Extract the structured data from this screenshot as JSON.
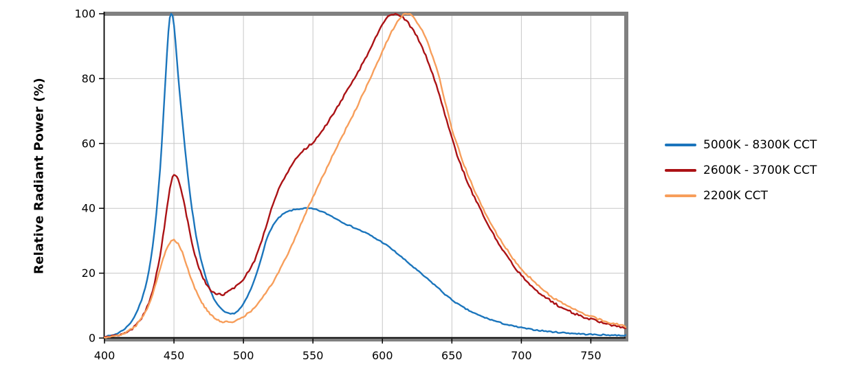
{
  "chart_data": {
    "type": "line",
    "title": "",
    "xlabel": "",
    "ylabel": "Relative Radiant Power (%)",
    "xlim": [
      400,
      775
    ],
    "ylim": [
      0,
      100
    ],
    "x_ticks": [
      400,
      450,
      500,
      550,
      600,
      650,
      700,
      750
    ],
    "y_ticks": [
      0,
      20,
      40,
      60,
      80,
      100
    ],
    "grid": true,
    "legend_position": "right",
    "colors": {
      "grid": "#C7C7C7",
      "plot_border": "#808080",
      "axis": "#000000",
      "tick_label": "#000000",
      "background": "#FFFFFF"
    },
    "series": [
      {
        "name": "5000K - 8300K CCT",
        "color": "#1B75BC",
        "noise": 0.18,
        "points": [
          [
            400,
            0.4
          ],
          [
            404,
            0.7
          ],
          [
            408,
            1.2
          ],
          [
            412,
            2.1
          ],
          [
            416,
            3.4
          ],
          [
            420,
            5.5
          ],
          [
            424,
            8.8
          ],
          [
            428,
            13.5
          ],
          [
            432,
            21
          ],
          [
            436,
            33
          ],
          [
            440,
            52
          ],
          [
            443,
            73
          ],
          [
            445,
            88
          ],
          [
            447,
            99
          ],
          [
            449,
            99.5
          ],
          [
            451,
            92
          ],
          [
            453,
            81
          ],
          [
            456,
            67
          ],
          [
            459,
            54
          ],
          [
            462,
            43
          ],
          [
            465,
            34
          ],
          [
            468,
            27
          ],
          [
            472,
            20
          ],
          [
            476,
            14.8
          ],
          [
            480,
            11.2
          ],
          [
            484,
            8.9
          ],
          [
            488,
            7.7
          ],
          [
            492,
            7.5
          ],
          [
            496,
            8.4
          ],
          [
            500,
            10.5
          ],
          [
            504,
            13.8
          ],
          [
            508,
            18
          ],
          [
            512,
            23.5
          ],
          [
            516,
            29.5
          ],
          [
            520,
            33.8
          ],
          [
            524,
            36.3
          ],
          [
            528,
            38
          ],
          [
            532,
            39
          ],
          [
            536,
            39.5
          ],
          [
            540,
            39.8
          ],
          [
            545,
            40
          ],
          [
            550,
            39.8
          ],
          [
            555,
            39.2
          ],
          [
            560,
            38.3
          ],
          [
            565,
            37.2
          ],
          [
            570,
            36
          ],
          [
            575,
            34.9
          ],
          [
            580,
            34
          ],
          [
            585,
            33
          ],
          [
            590,
            32
          ],
          [
            595,
            30.7
          ],
          [
            600,
            29.5
          ],
          [
            605,
            28
          ],
          [
            610,
            26.3
          ],
          [
            615,
            24.5
          ],
          [
            620,
            22.7
          ],
          [
            625,
            20.9
          ],
          [
            630,
            19.1
          ],
          [
            635,
            17.3
          ],
          [
            640,
            15.5
          ],
          [
            645,
            13.5
          ],
          [
            650,
            11.8
          ],
          [
            655,
            10.3
          ],
          [
            660,
            9
          ],
          [
            665,
            7.9
          ],
          [
            670,
            6.9
          ],
          [
            675,
            6.1
          ],
          [
            680,
            5.4
          ],
          [
            685,
            4.7
          ],
          [
            690,
            4.1
          ],
          [
            695,
            3.6
          ],
          [
            700,
            3.2
          ],
          [
            705,
            2.8
          ],
          [
            710,
            2.5
          ],
          [
            715,
            2.25
          ],
          [
            720,
            2
          ],
          [
            725,
            1.8
          ],
          [
            730,
            1.65
          ],
          [
            735,
            1.5
          ],
          [
            740,
            1.35
          ],
          [
            745,
            1.2
          ],
          [
            750,
            1.1
          ],
          [
            755,
            1
          ],
          [
            760,
            0.95
          ],
          [
            765,
            0.9
          ],
          [
            770,
            0.85
          ],
          [
            775,
            0.8
          ]
        ]
      },
      {
        "name": "2600K - 3700K CCT",
        "color": "#AB1215",
        "noise": 0.35,
        "points": [
          [
            400,
            0.3
          ],
          [
            404,
            0.5
          ],
          [
            408,
            0.8
          ],
          [
            412,
            1.2
          ],
          [
            416,
            1.9
          ],
          [
            420,
            2.9
          ],
          [
            424,
            4.6
          ],
          [
            428,
            7.2
          ],
          [
            432,
            11
          ],
          [
            436,
            17
          ],
          [
            440,
            25.5
          ],
          [
            443,
            34
          ],
          [
            446,
            43
          ],
          [
            448,
            48
          ],
          [
            450,
            50.3
          ],
          [
            452,
            49.8
          ],
          [
            455,
            46
          ],
          [
            458,
            40
          ],
          [
            461,
            33.5
          ],
          [
            464,
            27.5
          ],
          [
            467,
            23
          ],
          [
            470,
            19.5
          ],
          [
            473,
            16.8
          ],
          [
            476,
            14.8
          ],
          [
            479,
            13.7
          ],
          [
            482,
            13.4
          ],
          [
            485,
            13.5
          ],
          [
            488,
            14
          ],
          [
            492,
            15
          ],
          [
            496,
            16.5
          ],
          [
            500,
            18.3
          ],
          [
            504,
            20.8
          ],
          [
            508,
            24
          ],
          [
            512,
            28.5
          ],
          [
            516,
            34
          ],
          [
            520,
            40
          ],
          [
            524,
            44.5
          ],
          [
            528,
            48.3
          ],
          [
            532,
            51.3
          ],
          [
            536,
            54
          ],
          [
            540,
            56.3
          ],
          [
            545,
            58.5
          ],
          [
            550,
            60.3
          ],
          [
            555,
            63
          ],
          [
            560,
            66
          ],
          [
            565,
            69.5
          ],
          [
            570,
            73
          ],
          [
            575,
            76.5
          ],
          [
            580,
            80
          ],
          [
            585,
            84
          ],
          [
            590,
            88
          ],
          [
            595,
            92.5
          ],
          [
            600,
            96.5
          ],
          [
            604,
            99
          ],
          [
            608,
            100
          ],
          [
            612,
            99.7
          ],
          [
            616,
            98.3
          ],
          [
            620,
            96.3
          ],
          [
            625,
            92.8
          ],
          [
            630,
            88.3
          ],
          [
            635,
            82.8
          ],
          [
            640,
            76.5
          ],
          [
            645,
            69
          ],
          [
            650,
            61.5
          ],
          [
            655,
            55
          ],
          [
            660,
            49.5
          ],
          [
            665,
            44.5
          ],
          [
            670,
            40
          ],
          [
            675,
            35.8
          ],
          [
            680,
            31.8
          ],
          [
            685,
            28.2
          ],
          [
            690,
            25
          ],
          [
            695,
            22
          ],
          [
            700,
            19.4
          ],
          [
            705,
            17.1
          ],
          [
            710,
            15.1
          ],
          [
            715,
            13.3
          ],
          [
            720,
            11.8
          ],
          [
            725,
            10.4
          ],
          [
            730,
            9.2
          ],
          [
            735,
            8.2
          ],
          [
            740,
            7.3
          ],
          [
            745,
            6.5
          ],
          [
            750,
            5.8
          ],
          [
            755,
            5.1
          ],
          [
            760,
            4.5
          ],
          [
            765,
            4
          ],
          [
            770,
            3.5
          ],
          [
            775,
            3.1
          ]
        ]
      },
      {
        "name": "2200K CCT",
        "color": "#F79E5B",
        "noise": 0.3,
        "points": [
          [
            400,
            0.3
          ],
          [
            404,
            0.5
          ],
          [
            408,
            0.8
          ],
          [
            412,
            1.2
          ],
          [
            416,
            1.9
          ],
          [
            420,
            2.9
          ],
          [
            424,
            4.5
          ],
          [
            428,
            7
          ],
          [
            432,
            10.5
          ],
          [
            436,
            15.5
          ],
          [
            440,
            21.5
          ],
          [
            443,
            25.5
          ],
          [
            446,
            28.5
          ],
          [
            448,
            29.8
          ],
          [
            450,
            30.2
          ],
          [
            452,
            29.6
          ],
          [
            455,
            27.5
          ],
          [
            458,
            24
          ],
          [
            461,
            20
          ],
          [
            464,
            16.5
          ],
          [
            467,
            13.5
          ],
          [
            470,
            11
          ],
          [
            473,
            9
          ],
          [
            476,
            7.4
          ],
          [
            479,
            6.2
          ],
          [
            482,
            5.4
          ],
          [
            485,
            5
          ],
          [
            488,
            4.9
          ],
          [
            492,
            5.1
          ],
          [
            496,
            5.7
          ],
          [
            500,
            6.6
          ],
          [
            504,
            7.8
          ],
          [
            508,
            9.4
          ],
          [
            512,
            11.4
          ],
          [
            516,
            13.8
          ],
          [
            520,
            16.4
          ],
          [
            524,
            19.3
          ],
          [
            528,
            22.5
          ],
          [
            532,
            26
          ],
          [
            536,
            29.8
          ],
          [
            540,
            33.8
          ],
          [
            545,
            38.7
          ],
          [
            550,
            43.5
          ],
          [
            555,
            48
          ],
          [
            560,
            52.5
          ],
          [
            565,
            57
          ],
          [
            570,
            61.3
          ],
          [
            575,
            65.5
          ],
          [
            580,
            69.8
          ],
          [
            585,
            74.3
          ],
          [
            590,
            78.8
          ],
          [
            595,
            83.5
          ],
          [
            600,
            88.3
          ],
          [
            604,
            92
          ],
          [
            608,
            95.5
          ],
          [
            612,
            98.3
          ],
          [
            615,
            99.6
          ],
          [
            618,
            100
          ],
          [
            621,
            99.4
          ],
          [
            625,
            97.3
          ],
          [
            630,
            93.5
          ],
          [
            635,
            88.3
          ],
          [
            640,
            81.8
          ],
          [
            645,
            73
          ],
          [
            650,
            64.5
          ],
          [
            655,
            58
          ],
          [
            660,
            52
          ],
          [
            665,
            46.8
          ],
          [
            670,
            42
          ],
          [
            675,
            37.7
          ],
          [
            680,
            33.8
          ],
          [
            685,
            30.2
          ],
          [
            690,
            27
          ],
          [
            695,
            24
          ],
          [
            700,
            21.4
          ],
          [
            705,
            19.1
          ],
          [
            710,
            17
          ],
          [
            715,
            15.1
          ],
          [
            720,
            13.4
          ],
          [
            725,
            11.9
          ],
          [
            730,
            10.6
          ],
          [
            735,
            9.4
          ],
          [
            740,
            8.4
          ],
          [
            745,
            7.5
          ],
          [
            750,
            6.7
          ],
          [
            755,
            5.9
          ],
          [
            760,
            5.2
          ],
          [
            765,
            4.6
          ],
          [
            770,
            4.1
          ],
          [
            775,
            3.6
          ]
        ]
      }
    ]
  }
}
